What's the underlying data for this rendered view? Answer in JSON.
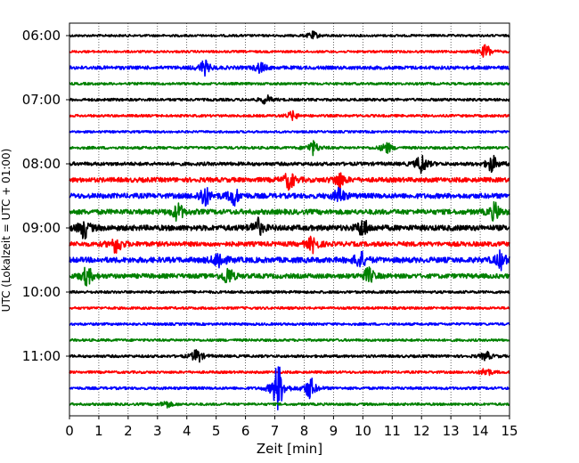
{
  "chart_data": {
    "type": "line",
    "title": "",
    "xlabel": "Zeit  [min]",
    "ylabel": "UTC (Lokalzeit = UTC + 01:00)",
    "xlim": [
      0,
      15
    ],
    "x_ticks": [
      "0",
      "1",
      "2",
      "3",
      "4",
      "5",
      "6",
      "7",
      "8",
      "9",
      "10",
      "11",
      "12",
      "13",
      "14",
      "15"
    ],
    "y_tick_labels": [
      "06:00",
      "07:00",
      "08:00",
      "09:00",
      "10:00",
      "11:00"
    ],
    "grid": "vertical dotted",
    "trace_interval_minutes": 15,
    "trace_colors": [
      "#000000",
      "#ff0000",
      "#0000ff",
      "#008000"
    ],
    "traces": [
      {
        "start": "06:00",
        "color": "#000000",
        "activity": 0.2,
        "events": [
          {
            "t": 8.3,
            "amp": 0.5
          }
        ]
      },
      {
        "start": "06:15",
        "color": "#ff0000",
        "activity": 0.2,
        "events": [
          {
            "t": 14.2,
            "amp": 1.0
          }
        ]
      },
      {
        "start": "06:30",
        "color": "#0000ff",
        "activity": 0.5,
        "events": [
          {
            "t": 4.6,
            "amp": 1.0
          },
          {
            "t": 6.5,
            "amp": 0.7
          }
        ]
      },
      {
        "start": "06:45",
        "color": "#008000",
        "activity": 0.25,
        "events": []
      },
      {
        "start": "07:00",
        "color": "#000000",
        "activity": 0.3,
        "events": [
          {
            "t": 6.7,
            "amp": 0.6
          }
        ]
      },
      {
        "start": "07:15",
        "color": "#ff0000",
        "activity": 0.25,
        "events": [
          {
            "t": 7.6,
            "amp": 0.6
          }
        ]
      },
      {
        "start": "07:30",
        "color": "#0000ff",
        "activity": 0.2,
        "events": []
      },
      {
        "start": "07:45",
        "color": "#008000",
        "activity": 0.3,
        "events": [
          {
            "t": 8.3,
            "amp": 1.0
          },
          {
            "t": 10.8,
            "amp": 0.8
          }
        ]
      },
      {
        "start": "08:00",
        "color": "#000000",
        "activity": 0.5,
        "events": [
          {
            "t": 12.0,
            "amp": 1.4
          },
          {
            "t": 14.4,
            "amp": 1.2
          }
        ]
      },
      {
        "start": "08:15",
        "color": "#ff0000",
        "activity": 0.8,
        "events": [
          {
            "t": 7.5,
            "amp": 1.3
          },
          {
            "t": 9.2,
            "amp": 1.1
          }
        ]
      },
      {
        "start": "08:30",
        "color": "#0000ff",
        "activity": 0.9,
        "events": [
          {
            "t": 4.6,
            "amp": 1.5
          },
          {
            "t": 5.6,
            "amp": 1.3
          },
          {
            "t": 9.2,
            "amp": 1.1
          }
        ]
      },
      {
        "start": "08:45",
        "color": "#008000",
        "activity": 0.9,
        "events": [
          {
            "t": 3.7,
            "amp": 1.2
          },
          {
            "t": 14.5,
            "amp": 1.2
          }
        ]
      },
      {
        "start": "09:00",
        "color": "#000000",
        "activity": 1.0,
        "events": [
          {
            "t": 0.5,
            "amp": 1.4
          },
          {
            "t": 6.4,
            "amp": 1.3
          },
          {
            "t": 10.0,
            "amp": 1.3
          }
        ]
      },
      {
        "start": "09:15",
        "color": "#ff0000",
        "activity": 0.8,
        "events": [
          {
            "t": 1.6,
            "amp": 1.3
          },
          {
            "t": 8.3,
            "amp": 1.1
          }
        ]
      },
      {
        "start": "09:30",
        "color": "#0000ff",
        "activity": 1.0,
        "events": [
          {
            "t": 5.1,
            "amp": 1.3
          },
          {
            "t": 9.9,
            "amp": 1.2
          },
          {
            "t": 14.7,
            "amp": 1.2
          }
        ]
      },
      {
        "start": "09:45",
        "color": "#008000",
        "activity": 0.8,
        "events": [
          {
            "t": 0.6,
            "amp": 1.3
          },
          {
            "t": 5.4,
            "amp": 1.3
          },
          {
            "t": 10.2,
            "amp": 1.1
          }
        ]
      },
      {
        "start": "10:00",
        "color": "#000000",
        "activity": 0.3,
        "events": []
      },
      {
        "start": "10:15",
        "color": "#ff0000",
        "activity": 0.25,
        "events": []
      },
      {
        "start": "10:30",
        "color": "#0000ff",
        "activity": 0.25,
        "events": []
      },
      {
        "start": "10:45",
        "color": "#008000",
        "activity": 0.25,
        "events": []
      },
      {
        "start": "11:00",
        "color": "#000000",
        "activity": 0.3,
        "events": [
          {
            "t": 4.35,
            "amp": 1.0
          },
          {
            "t": 14.2,
            "amp": 0.6
          }
        ]
      },
      {
        "start": "11:15",
        "color": "#ff0000",
        "activity": 0.25,
        "events": [
          {
            "t": 14.2,
            "amp": 0.6
          }
        ]
      },
      {
        "start": "11:30",
        "color": "#0000ff",
        "activity": 0.3,
        "events": [
          {
            "t": 7.1,
            "amp": 3.6
          },
          {
            "t": 8.2,
            "amp": 1.6
          }
        ]
      },
      {
        "start": "11:45",
        "color": "#008000",
        "activity": 0.25,
        "events": [
          {
            "t": 3.3,
            "amp": 0.5
          }
        ]
      }
    ]
  }
}
